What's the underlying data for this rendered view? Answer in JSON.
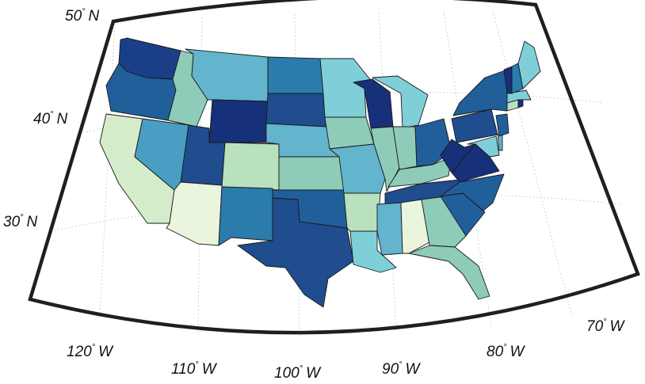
{
  "map": {
    "colormap": [
      "#e9f5dc",
      "#d4ecca",
      "#b9e1be",
      "#8ecbb9",
      "#7fcfd9",
      "#63b4cd",
      "#4a9ec3",
      "#2b7cad",
      "#215f9a",
      "#1f4d8e",
      "#1b3f86",
      "#17307a"
    ],
    "labels": {
      "lat50": "50",
      "lat50_dir": "N",
      "lat40": "40",
      "lat40_dir": "N",
      "lat30": "30",
      "lat30_dir": "N",
      "lon120": "120",
      "lon120_dir": "W",
      "lon110": "110",
      "lon110_dir": "W",
      "lon100": "100",
      "lon100_dir": "W",
      "lon90": "90",
      "lon90_dir": "W",
      "lon80": "80",
      "lon80_dir": "W",
      "lon70": "70",
      "lon70_dir": "W",
      "degree_symbol": "°"
    },
    "states": [
      {
        "name": "Washington",
        "color": "#1b3f86"
      },
      {
        "name": "Oregon",
        "color": "#215f9a"
      },
      {
        "name": "California",
        "color": "#d4ecca"
      },
      {
        "name": "Nevada",
        "color": "#4a9ec3"
      },
      {
        "name": "Idaho",
        "color": "#8ecbb9"
      },
      {
        "name": "Montana",
        "color": "#63b4cd"
      },
      {
        "name": "Wyoming",
        "color": "#17307a"
      },
      {
        "name": "Utah",
        "color": "#1f4d8e"
      },
      {
        "name": "Arizona",
        "color": "#e9f5dc"
      },
      {
        "name": "Colorado",
        "color": "#b9e1be"
      },
      {
        "name": "New Mexico",
        "color": "#2b7cad"
      },
      {
        "name": "North Dakota",
        "color": "#2b7cad"
      },
      {
        "name": "South Dakota",
        "color": "#1f4d8e"
      },
      {
        "name": "Nebraska",
        "color": "#63b4cd"
      },
      {
        "name": "Kansas",
        "color": "#8ecbb9"
      },
      {
        "name": "Oklahoma",
        "color": "#215f9a"
      },
      {
        "name": "Texas",
        "color": "#1f4d8e"
      },
      {
        "name": "Minnesota",
        "color": "#7fcfd9"
      },
      {
        "name": "Iowa",
        "color": "#8ecbb9"
      },
      {
        "name": "Missouri",
        "color": "#63b4cd"
      },
      {
        "name": "Arkansas",
        "color": "#b9e1be"
      },
      {
        "name": "Louisiana",
        "color": "#7fcfd9"
      },
      {
        "name": "Wisconsin",
        "color": "#17307a"
      },
      {
        "name": "Illinois",
        "color": "#8ecbb9"
      },
      {
        "name": "Michigan",
        "color": "#7fcfd9"
      },
      {
        "name": "Indiana",
        "color": "#8ecbb9"
      },
      {
        "name": "Ohio",
        "color": "#215f9a"
      },
      {
        "name": "Kentucky",
        "color": "#8ecbb9"
      },
      {
        "name": "Tennessee",
        "color": "#1f4d8e"
      },
      {
        "name": "Mississippi",
        "color": "#63b4cd"
      },
      {
        "name": "Alabama",
        "color": "#e9f5dc"
      },
      {
        "name": "Georgia",
        "color": "#8ecbb9"
      },
      {
        "name": "Florida",
        "color": "#8ecbb9"
      },
      {
        "name": "South Carolina",
        "color": "#215f9a"
      },
      {
        "name": "North Carolina",
        "color": "#215f9a"
      },
      {
        "name": "Virginia",
        "color": "#17307a"
      },
      {
        "name": "West Virginia",
        "color": "#17307a"
      },
      {
        "name": "Pennsylvania",
        "color": "#1f4d8e"
      },
      {
        "name": "New York",
        "color": "#215f9a"
      },
      {
        "name": "Maryland",
        "color": "#7fcfd9"
      },
      {
        "name": "Delaware",
        "color": "#63b4cd"
      },
      {
        "name": "New Jersey",
        "color": "#215f9a"
      },
      {
        "name": "Connecticut",
        "color": "#b9e1be"
      },
      {
        "name": "Rhode Island",
        "color": "#17307a"
      },
      {
        "name": "Massachusetts",
        "color": "#7fcfd9"
      },
      {
        "name": "Vermont",
        "color": "#17307a"
      },
      {
        "name": "New Hampshire",
        "color": "#2b7cad"
      },
      {
        "name": "Maine",
        "color": "#7fcfd9"
      }
    ]
  }
}
